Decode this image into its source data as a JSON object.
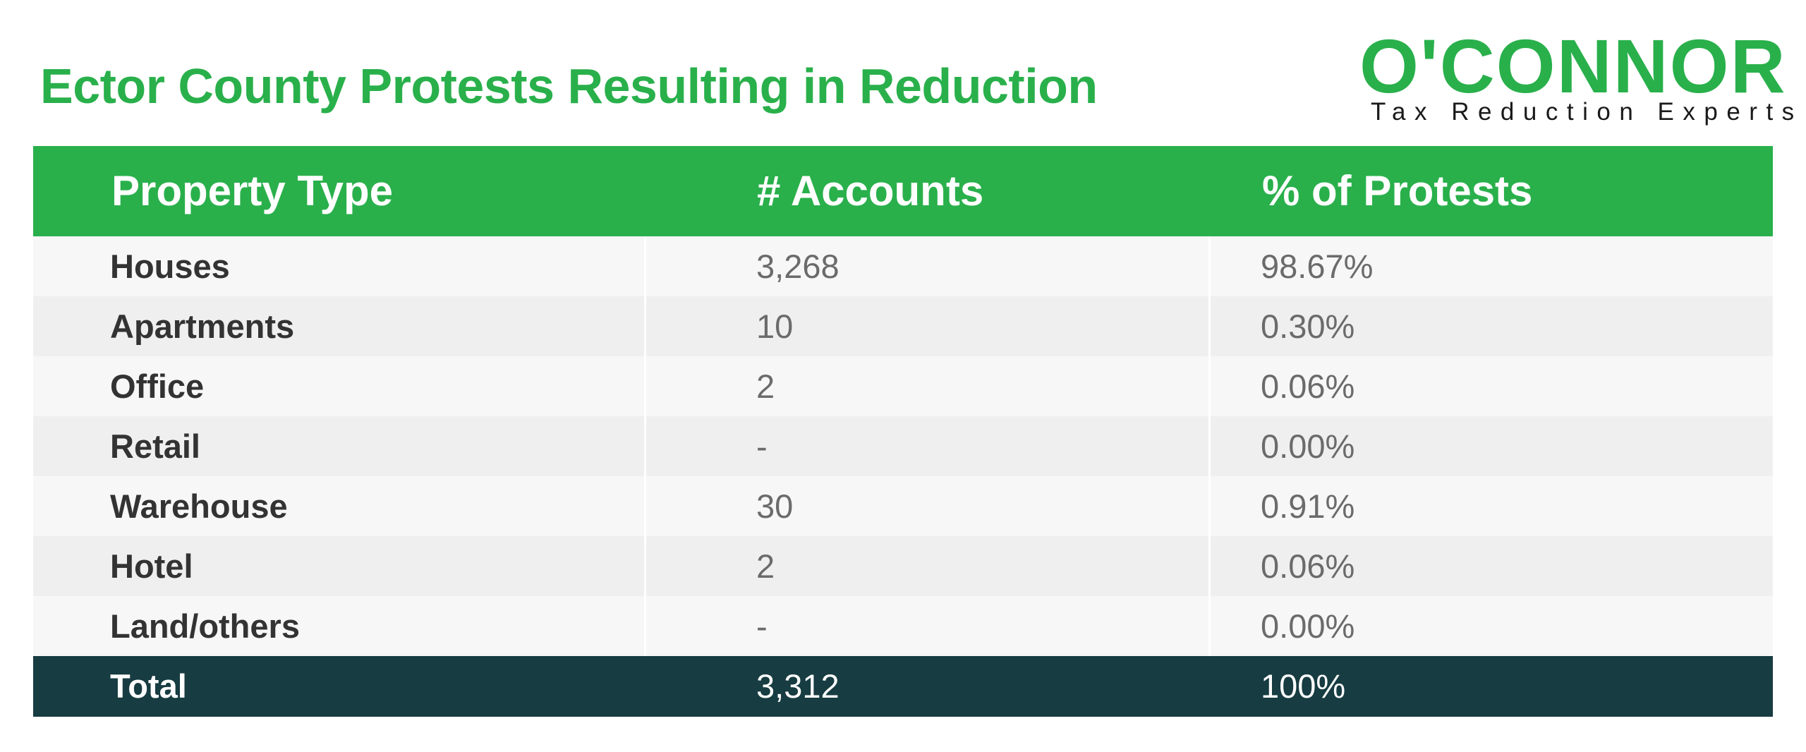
{
  "title": "Ector County Protests Resulting in Reduction",
  "logo": {
    "wordmark": "O'CONNOR",
    "tagline": "Tax Reduction Experts"
  },
  "colors": {
    "brand_green": "#29b04b",
    "total_row": "#173c41",
    "row_light": "#f7f7f7",
    "row_dark": "#efefef"
  },
  "table": {
    "headers": [
      "Property Type",
      "# Accounts",
      "% of Protests"
    ],
    "rows": [
      [
        "Houses",
        "3,268",
        "98.67%"
      ],
      [
        "Apartments",
        "10",
        "0.30%"
      ],
      [
        "Office",
        "2",
        "0.06%"
      ],
      [
        "Retail",
        "-",
        "0.00%"
      ],
      [
        "Warehouse",
        "30",
        "0.91%"
      ],
      [
        "Hotel",
        "2",
        "0.06%"
      ],
      [
        "Land/others",
        "-",
        "0.00%"
      ]
    ],
    "total": [
      "Total",
      "3,312",
      "100%"
    ]
  }
}
